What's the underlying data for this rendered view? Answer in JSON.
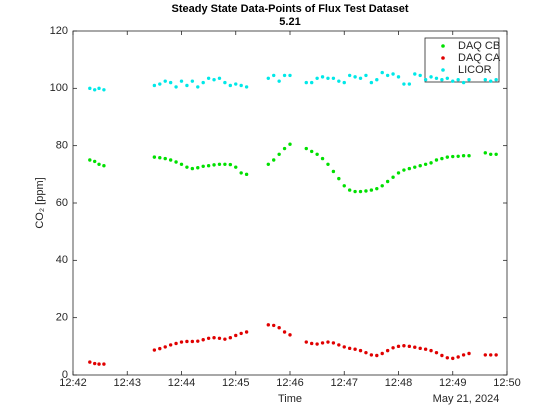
{
  "chart_data": {
    "type": "scatter",
    "title": "Steady State Data-Points of Flux Test Dataset",
    "subtitle": "5.21",
    "xlabel": "Time",
    "date_label": "May 21, 2024",
    "ylabel": "CO₂ [ppm]",
    "xlim": [
      762,
      770
    ],
    "xticks": [
      {
        "value": 762,
        "label": "12:42"
      },
      {
        "value": 763,
        "label": "12:43"
      },
      {
        "value": 764,
        "label": "12:44"
      },
      {
        "value": 765,
        "label": "12:45"
      },
      {
        "value": 766,
        "label": "12:46"
      },
      {
        "value": 767,
        "label": "12:47"
      },
      {
        "value": 768,
        "label": "12:48"
      },
      {
        "value": 769,
        "label": "12:49"
      },
      {
        "value": 770,
        "label": "12:50"
      }
    ],
    "ylim": [
      0,
      120
    ],
    "yticks": [
      0,
      20,
      40,
      60,
      80,
      100,
      120
    ],
    "legend": "northeast",
    "x": [
      762.31,
      762.4,
      762.48,
      762.57,
      763.5,
      763.6,
      763.7,
      763.8,
      763.9,
      764.0,
      764.1,
      764.2,
      764.3,
      764.4,
      764.5,
      764.6,
      764.7,
      764.8,
      764.9,
      765.0,
      765.1,
      765.2,
      765.6,
      765.7,
      765.8,
      765.9,
      766.0,
      766.3,
      766.4,
      766.5,
      766.6,
      766.7,
      766.8,
      766.9,
      767.0,
      767.1,
      767.2,
      767.3,
      767.4,
      767.5,
      767.6,
      767.7,
      767.8,
      767.9,
      768.0,
      768.1,
      768.2,
      768.3,
      768.4,
      768.5,
      768.6,
      768.7,
      768.8,
      768.9,
      769.0,
      769.1,
      769.2,
      769.3,
      769.6,
      769.7,
      769.8
    ],
    "series": [
      {
        "name": "DAQ CB",
        "color": "#00e000",
        "values": [
          75,
          74.5,
          73.5,
          73,
          76,
          75.8,
          75.5,
          75,
          74.3,
          73.5,
          72.5,
          72,
          72.3,
          72.8,
          73,
          73.3,
          73.5,
          73.5,
          73.4,
          72.5,
          70.5,
          70,
          73.5,
          75,
          77,
          79,
          80.5,
          79,
          78,
          77,
          75.5,
          73.5,
          71,
          68.5,
          66,
          64.5,
          64,
          64,
          64.2,
          64.5,
          65,
          66,
          67.5,
          69,
          70.5,
          71.5,
          72,
          72.5,
          73,
          73.5,
          74,
          75,
          75.5,
          76,
          76.2,
          76.3,
          76.5,
          76.5,
          77.5,
          77,
          77
        ]
      },
      {
        "name": "DAQ CA",
        "color": "#e00000",
        "values": [
          4.5,
          4,
          3.8,
          3.8,
          8.7,
          9.2,
          9.8,
          10.5,
          11,
          11.5,
          11.7,
          11.7,
          11.8,
          12.3,
          12.8,
          13,
          12.8,
          12.5,
          13,
          13.8,
          14.5,
          15,
          17.5,
          17.3,
          16.5,
          15,
          14,
          11.5,
          11,
          10.8,
          11.2,
          11.5,
          11.2,
          10.5,
          9.8,
          9.3,
          9,
          8.5,
          7.8,
          7,
          6.8,
          7.5,
          8.5,
          9.5,
          10,
          10.2,
          10,
          9.7,
          9.3,
          9,
          8.5,
          7.8,
          6.8,
          6,
          5.8,
          6.3,
          7,
          7.5,
          7,
          7,
          7
        ]
      },
      {
        "name": "LICOR",
        "color": "#00e8e8",
        "values": [
          100,
          99.5,
          100,
          99.5,
          101,
          101.5,
          102.5,
          102,
          100.5,
          102.5,
          101,
          102.5,
          100.5,
          102,
          103.5,
          103,
          103.5,
          102,
          101,
          101.5,
          101,
          100.5,
          103.5,
          104.5,
          102.5,
          104.5,
          104.5,
          102,
          102,
          103.5,
          104,
          103.5,
          103.5,
          102.5,
          102,
          104.5,
          104,
          103.5,
          104.5,
          102,
          103,
          105.5,
          104.5,
          105,
          104,
          101.5,
          101.5,
          105,
          104.5,
          103,
          104,
          103.5,
          103,
          103.5,
          102.5,
          103,
          102,
          103,
          103,
          102.5,
          103
        ]
      }
    ]
  }
}
